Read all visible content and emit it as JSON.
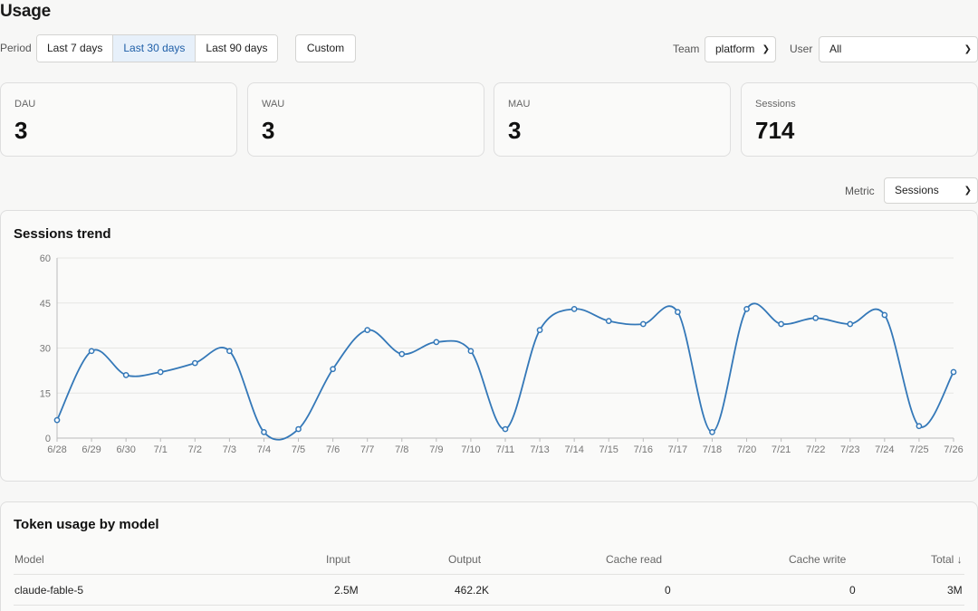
{
  "page": {
    "title": "Usage"
  },
  "filters": {
    "period_label": "Period",
    "periods": [
      "Last 7 days",
      "Last 30 days",
      "Last 90 days"
    ],
    "active_period": "Last 30 days",
    "custom_label": "Custom",
    "team_label": "Team",
    "team_value": "platform",
    "user_label": "User",
    "user_value": "All",
    "metric_label": "Metric",
    "metric_value": "Sessions"
  },
  "kpis": [
    {
      "label": "DAU",
      "value": "3"
    },
    {
      "label": "WAU",
      "value": "3"
    },
    {
      "label": "MAU",
      "value": "3"
    },
    {
      "label": "Sessions",
      "value": "714"
    }
  ],
  "chart_data": {
    "type": "line",
    "title": "Sessions trend",
    "x": [
      "6/28",
      "6/29",
      "6/30",
      "7/1",
      "7/2",
      "7/3",
      "7/4",
      "7/5",
      "7/6",
      "7/7",
      "7/8",
      "7/9",
      "7/10",
      "7/11",
      "7/13",
      "7/14",
      "7/15",
      "7/16",
      "7/17",
      "7/18",
      "7/20",
      "7/21",
      "7/22",
      "7/23",
      "7/24",
      "7/25",
      "7/26"
    ],
    "series": [
      {
        "values": [
          6,
          29,
          21,
          22,
          25,
          29,
          2,
          3,
          23,
          36,
          28,
          32,
          29,
          3,
          36,
          43,
          39,
          38,
          42,
          2,
          43,
          38,
          40,
          38,
          41,
          4,
          22
        ]
      }
    ],
    "yticks": [
      0,
      15,
      30,
      45,
      60
    ],
    "ylim": [
      0,
      60
    ],
    "grid": true,
    "line_color": "#3478b8"
  },
  "token_table": {
    "title": "Token usage by model",
    "headers": [
      "Model",
      "Input",
      "Output",
      "Cache read",
      "Cache write",
      "Total ↓"
    ],
    "rows": [
      [
        "claude-fable-5",
        "2.5M",
        "462.2K",
        "0",
        "0",
        "3M"
      ]
    ]
  }
}
